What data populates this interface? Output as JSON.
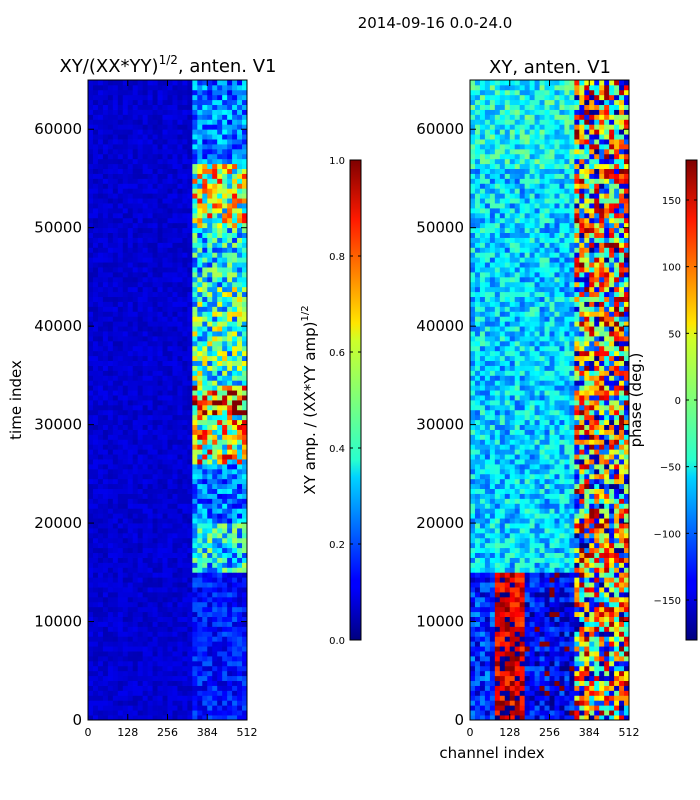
{
  "figure": {
    "suptitle": "2014-09-16 0.0-24.0",
    "shared_ylabel": "time index",
    "shared_xlabel": "channel index"
  },
  "chart_data": [
    {
      "type": "heatmap",
      "title_main": "XY/(XX*YY)",
      "title_exp": "1/2",
      "title_tail": ", anten. V1",
      "xlabel": "",
      "ylabel": "time index",
      "xlim": [
        0,
        512
      ],
      "ylim": [
        0,
        65000
      ],
      "xticks": [
        0,
        128,
        256,
        384,
        512
      ],
      "yticks": [
        0,
        10000,
        20000,
        30000,
        40000,
        50000,
        60000
      ],
      "colormap": "jet",
      "colorbar": {
        "label_main": "XY amp. / (XX*YY amp)",
        "label_exp": "1/2",
        "range": [
          0.0,
          1.0
        ],
        "ticks": [
          "0.0",
          "0.2",
          "0.4",
          "0.6",
          "0.8",
          "1.0"
        ],
        "tick_values": [
          0.0,
          0.2,
          0.4,
          0.6,
          0.8,
          1.0
        ]
      },
      "blocks": [
        {
          "t0": 0,
          "t1": 15000,
          "ch0": 0,
          "ch1": 330,
          "level": 0.08
        },
        {
          "t0": 0,
          "t1": 15000,
          "ch0": 330,
          "ch1": 512,
          "level": 0.18
        },
        {
          "t0": 15000,
          "t1": 20000,
          "ch0": 330,
          "ch1": 512,
          "level": 0.45
        },
        {
          "t0": 20000,
          "t1": 26000,
          "ch0": 330,
          "ch1": 512,
          "level": 0.3
        },
        {
          "t0": 26000,
          "t1": 31000,
          "ch0": 330,
          "ch1": 512,
          "level": 0.75
        },
        {
          "t0": 31000,
          "t1": 34000,
          "ch0": 330,
          "ch1": 512,
          "level": 0.95
        },
        {
          "t0": 34000,
          "t1": 44000,
          "ch0": 330,
          "ch1": 512,
          "level": 0.55
        },
        {
          "t0": 44000,
          "t1": 50000,
          "ch0": 330,
          "ch1": 512,
          "level": 0.45
        },
        {
          "t0": 50000,
          "t1": 56500,
          "ch0": 330,
          "ch1": 512,
          "level": 0.7
        },
        {
          "t0": 56500,
          "t1": 65000,
          "ch0": 330,
          "ch1": 512,
          "level": 0.3
        }
      ]
    },
    {
      "type": "heatmap",
      "title_main": "XY, anten. V1",
      "xlabel": "channel index",
      "ylabel": "",
      "xlim": [
        0,
        512
      ],
      "ylim": [
        0,
        65000
      ],
      "xticks": [
        0,
        128,
        256,
        384,
        512
      ],
      "yticks": [
        0,
        10000,
        20000,
        30000,
        40000,
        50000,
        60000
      ],
      "colormap": "jet",
      "colorbar": {
        "label_main": "phase (deg.)",
        "range": [
          -180,
          180
        ],
        "ticks": [
          "−150",
          "−100",
          "−50",
          "0",
          "50",
          "100",
          "150"
        ],
        "tick_values": [
          -150,
          -100,
          -50,
          0,
          50,
          100,
          150
        ]
      },
      "blocks": [
        {
          "t0": 0,
          "t1": 15000,
          "ch0": 0,
          "ch1": 80,
          "phase": -120
        },
        {
          "t0": 0,
          "t1": 15000,
          "ch0": 80,
          "ch1": 170,
          "phase": 150
        },
        {
          "t0": 0,
          "t1": 15000,
          "ch0": 170,
          "ch1": 330,
          "phase": -140
        },
        {
          "t0": 0,
          "t1": 15000,
          "ch0": 330,
          "ch1": 512,
          "phase": 90
        },
        {
          "t0": 15000,
          "t1": 56000,
          "ch0": 0,
          "ch1": 330,
          "phase": -60
        },
        {
          "t0": 15000,
          "t1": 56000,
          "ch0": 330,
          "ch1": 512,
          "phase": 120
        },
        {
          "t0": 56000,
          "t1": 65000,
          "ch0": 0,
          "ch1": 330,
          "phase": -40
        },
        {
          "t0": 56000,
          "t1": 65000,
          "ch0": 330,
          "ch1": 512,
          "phase": 100
        }
      ]
    }
  ]
}
